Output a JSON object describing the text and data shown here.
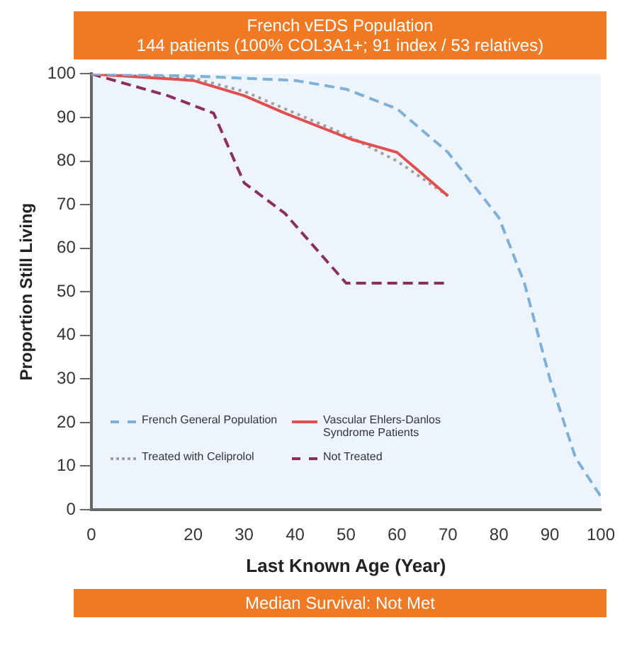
{
  "chart_data": {
    "type": "line",
    "title": "French vEDS Population",
    "subtitle": "144 patients (100% COL3A1+; 91 index / 53 relatives)",
    "xlabel": "Last Known Age (Year)",
    "ylabel": "Proportion Still Living",
    "xlim": [
      0,
      100
    ],
    "xticks": [
      0,
      20,
      30,
      40,
      50,
      60,
      70,
      80,
      90,
      100
    ],
    "ylim": [
      0,
      100
    ],
    "yticks": [
      0,
      10,
      20,
      30,
      40,
      50,
      60,
      70,
      80,
      90,
      100
    ],
    "legend": "bottom left",
    "marker": "none",
    "annotations": [
      "Median Survival: Not Met"
    ],
    "series": [
      {
        "name": "French General Population",
        "color": "#7fb0d8",
        "line_style": "dashed",
        "x": [
          0,
          20,
          40,
          50,
          60,
          70,
          80,
          85,
          90,
          95,
          100
        ],
        "values": [
          100,
          99.5,
          98.5,
          96.5,
          92,
          82,
          67,
          52,
          30,
          12,
          3
        ]
      },
      {
        "name": "Vascular Ehlers-Danlos Syndrome Patients",
        "color": "#e05050",
        "line_style": "solid",
        "x": [
          0,
          20,
          30,
          38,
          51,
          60,
          70
        ],
        "values": [
          100,
          98.5,
          95,
          91,
          85,
          82,
          72
        ]
      },
      {
        "name": "Treated with Celiprolol",
        "color": "#a0a0a0",
        "line_style": "dotted",
        "x": [
          0,
          20,
          30,
          40,
          50,
          60,
          70
        ],
        "values": [
          100,
          99,
          96,
          91,
          86,
          80,
          72
        ]
      },
      {
        "name": "Not Treated",
        "color": "#8a3060",
        "line_style": "dashed",
        "x": [
          0,
          15,
          24,
          30,
          38,
          44,
          50,
          70
        ],
        "values": [
          100,
          95,
          91,
          75,
          68,
          60,
          52,
          52
        ]
      }
    ]
  }
}
